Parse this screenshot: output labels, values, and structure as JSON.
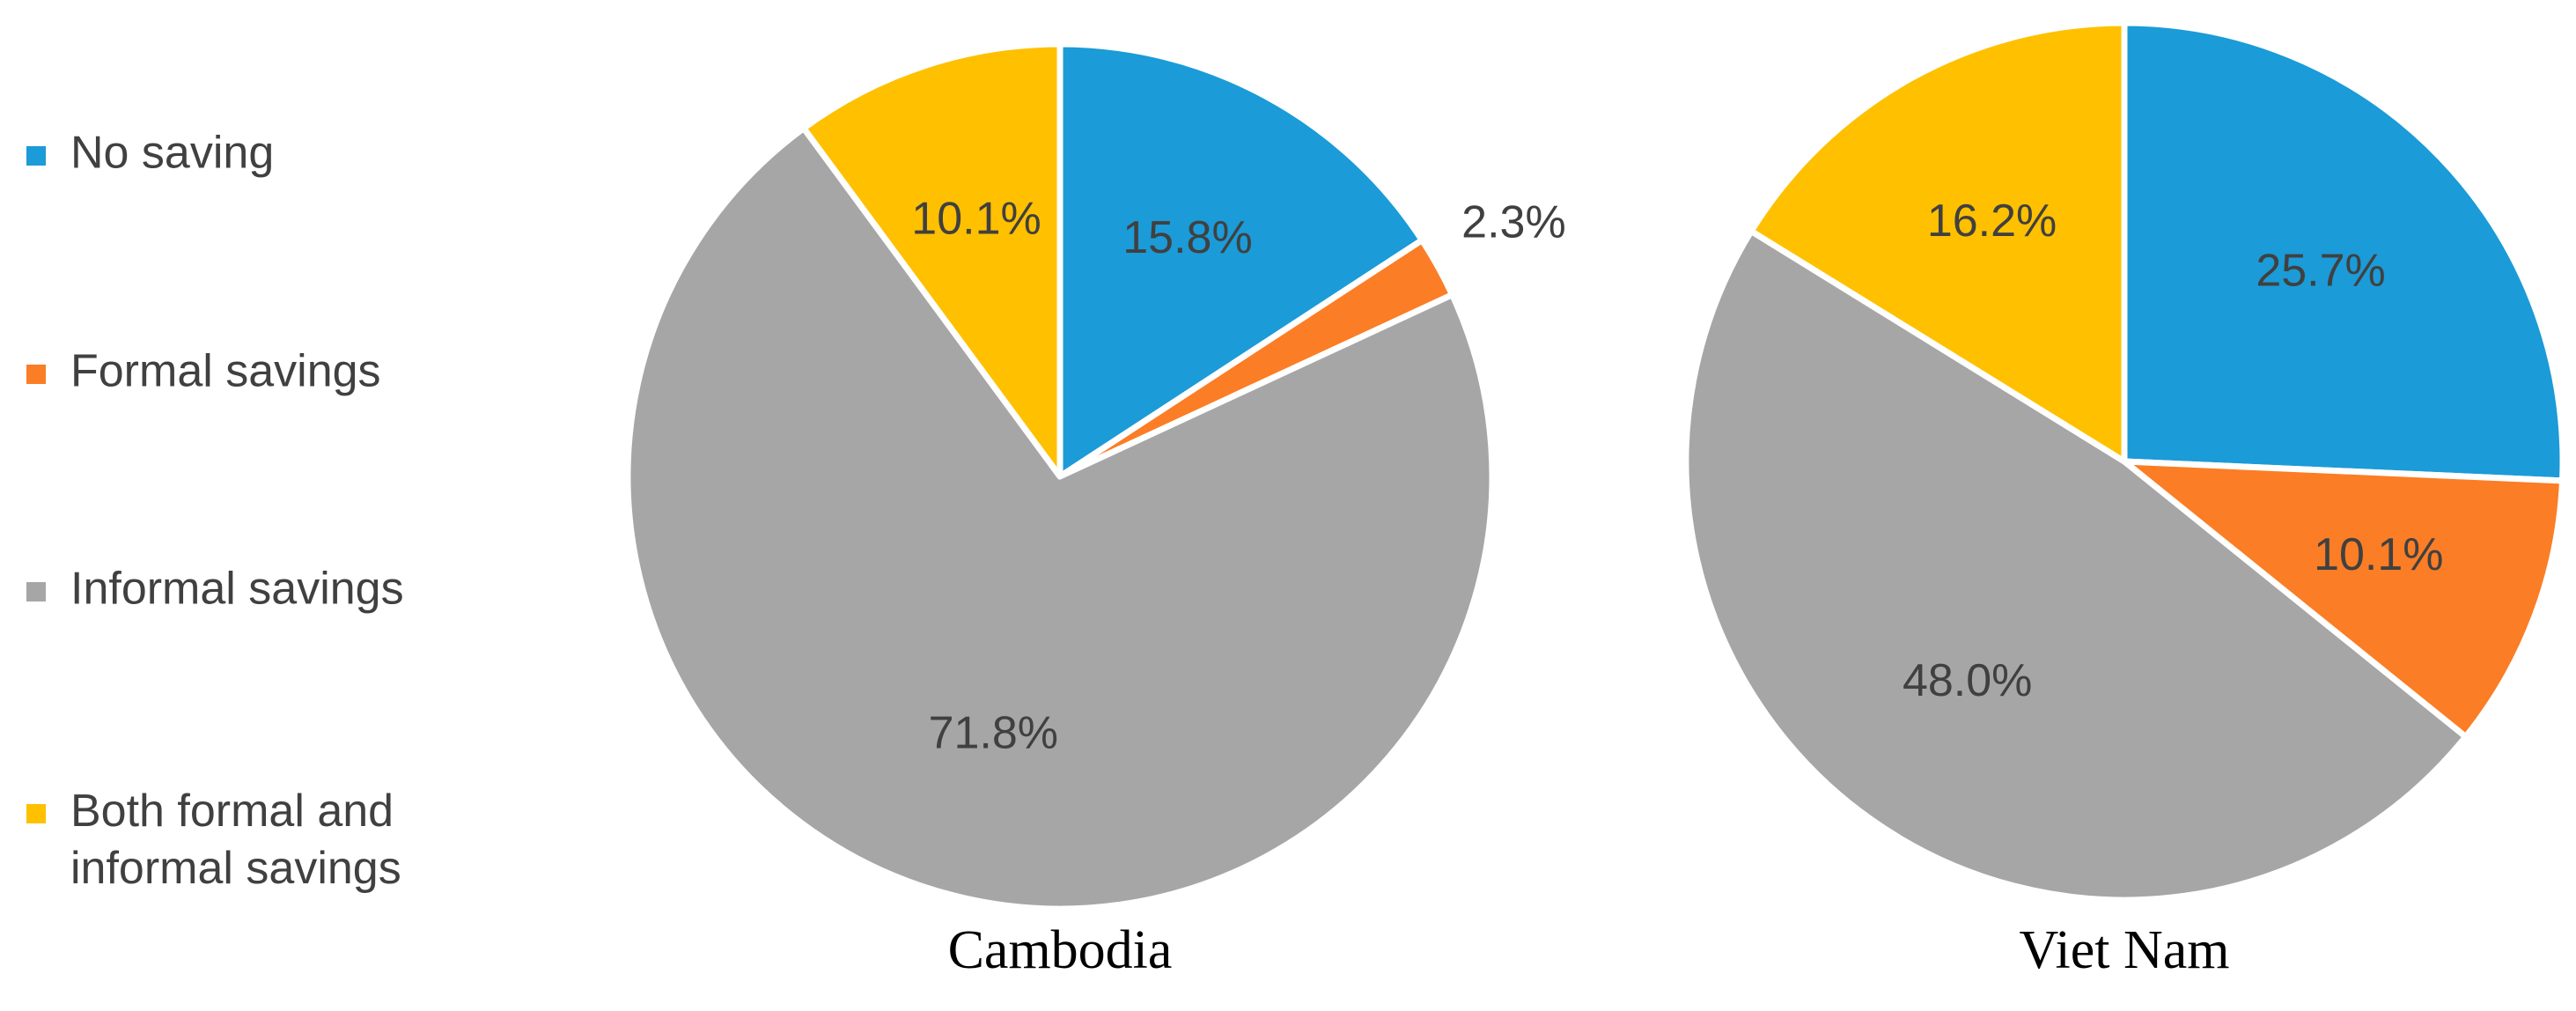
{
  "chart_data": [
    {
      "type": "pie",
      "title": "Cambodia",
      "categories": [
        "No saving",
        "Formal savings",
        "Informal savings",
        "Both formal and informal savings"
      ],
      "values": [
        15.8,
        2.3,
        71.8,
        10.1
      ],
      "value_labels": [
        "15.8%",
        "2.3%",
        "71.8%",
        "10.1%"
      ],
      "colors": [
        "#1b9bd7",
        "#fb7d25",
        "#a6a6a6",
        "#ffc000"
      ]
    },
    {
      "type": "pie",
      "title": "Viet Nam",
      "categories": [
        "No saving",
        "Formal savings",
        "Informal savings",
        "Both formal and informal savings"
      ],
      "values": [
        25.7,
        10.1,
        48.0,
        16.2
      ],
      "value_labels": [
        "25.7%",
        "10.1%",
        "48.0%",
        "16.2%"
      ],
      "colors": [
        "#1b9bd7",
        "#fb7d25",
        "#a6a6a6",
        "#ffc000"
      ]
    }
  ]
}
